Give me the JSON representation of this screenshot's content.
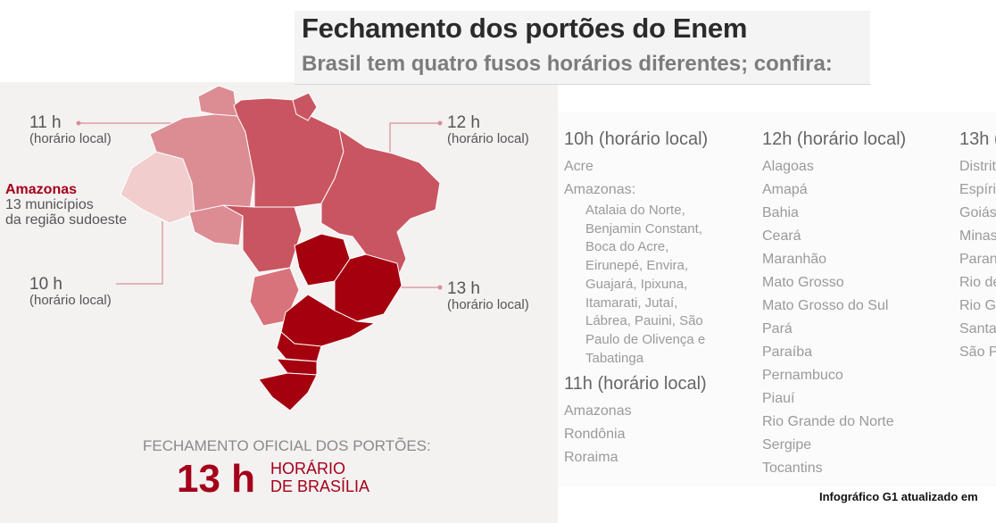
{
  "header": {
    "title": "Fechamento dos portões do Enem",
    "subtitle": "Brasil tem quatro fusos horários diferentes; confira:"
  },
  "map": {
    "labels": {
      "tz11_hour": "11 h",
      "tz11_sub": "(horário local)",
      "amazonas_title": "Amazonas",
      "amazonas_line1": "13 municípios",
      "amazonas_line2": "da região sudoeste",
      "tz10_hour": "10 h",
      "tz10_sub": "(horário local)",
      "tz12_hour": "12 h",
      "tz12_sub": "(horário local)",
      "tz13_hour": "13 h",
      "tz13_sub": "(horário local)"
    },
    "colors": {
      "tz10": "#f1cdcd",
      "tz11": "#dc8d93",
      "tz12": "#c95561",
      "tz13": "#a4000e"
    }
  },
  "bottom": {
    "official_label": "FECHAMENTO OFICIAL DOS PORTÕES:",
    "big_time": "13 h",
    "brasilia_line1": "HORÁRIO",
    "brasilia_line2": "DE BRASÍLIA"
  },
  "columns": {
    "col10": {
      "heading": "10h (horário local)",
      "items": [
        "Acre",
        "Amazonas:"
      ],
      "sub_items": "Atalaia do Norte, Benjamin Constant, Boca do Acre, Eirunepé, Envira, Guajará, Ipixuna, Itamarati, Jutaí, Lábrea, Pauini, São Paulo de Olivença e Tabatinga"
    },
    "col11": {
      "heading": "11h (horário local)",
      "items": [
        "Amazonas",
        "Rondônia",
        "Roraima"
      ]
    },
    "col12": {
      "heading": "12h (horário local)",
      "items": [
        "Alagoas",
        "Amapá",
        "Bahia",
        "Ceará",
        "Maranhão",
        "Mato Grosso",
        "Mato Grosso do Sul",
        "Pará",
        "Paraíba",
        "Pernambuco",
        "Piauí",
        "Rio Grande do Norte",
        "Sergipe",
        "Tocantins"
      ]
    },
    "col13": {
      "heading": "13h (",
      "items": [
        "Distrit",
        "Espírit",
        "Goiás",
        "Minas",
        "Paran",
        "Rio de",
        "Rio Gr",
        "Santa",
        "São P"
      ]
    }
  },
  "credit": "Infográfico G1 atualizado em"
}
